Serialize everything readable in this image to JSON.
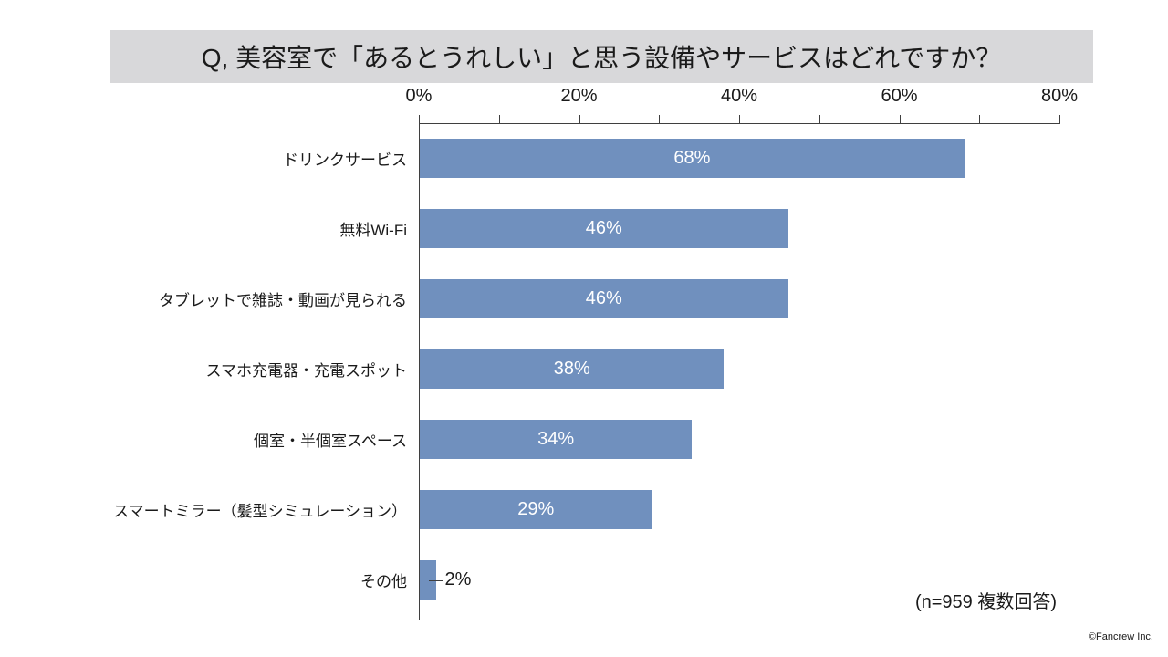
{
  "title": "Q, 美容室で「あるとうれしい」と思う設備やサービスはどれですか？",
  "note": "(n=959 複数回答)",
  "footer": "©Fancrew Inc.",
  "colors": {
    "bar": "#7090be",
    "banner_bg": "#d8d8da",
    "axis": "#3f3f3f",
    "label_in_bar": "#ffffff",
    "label_outside": "#1a1a1a"
  },
  "chart_data": {
    "type": "bar",
    "orientation": "horizontal",
    "title": "Q, 美容室で「あるとうれしい」と思う設備やサービスはどれですか？",
    "categories": [
      "ドリンクサービス",
      "無料Wi-Fi",
      "タブレットで雑誌・動画が見られる",
      "スマホ充電器・充電スポット",
      "個室・半個室スペース",
      "スマートミラー（髪型シミュレーション）",
      "その他"
    ],
    "values": [
      68,
      46,
      46,
      38,
      34,
      29,
      2
    ],
    "value_labels": [
      "68%",
      "46%",
      "46%",
      "38%",
      "34%",
      "29%",
      "2%"
    ],
    "xlabel": "",
    "ylabel": "",
    "xlim": [
      0,
      80
    ],
    "x_axis": {
      "position": "top",
      "tick_labels": [
        "0%",
        "20%",
        "40%",
        "60%",
        "80%"
      ],
      "tick_values": [
        0,
        20,
        40,
        60,
        80
      ],
      "minor_tick_step": 10
    },
    "grid": false,
    "legend": false,
    "annotation": "(n=959 複数回答)"
  }
}
